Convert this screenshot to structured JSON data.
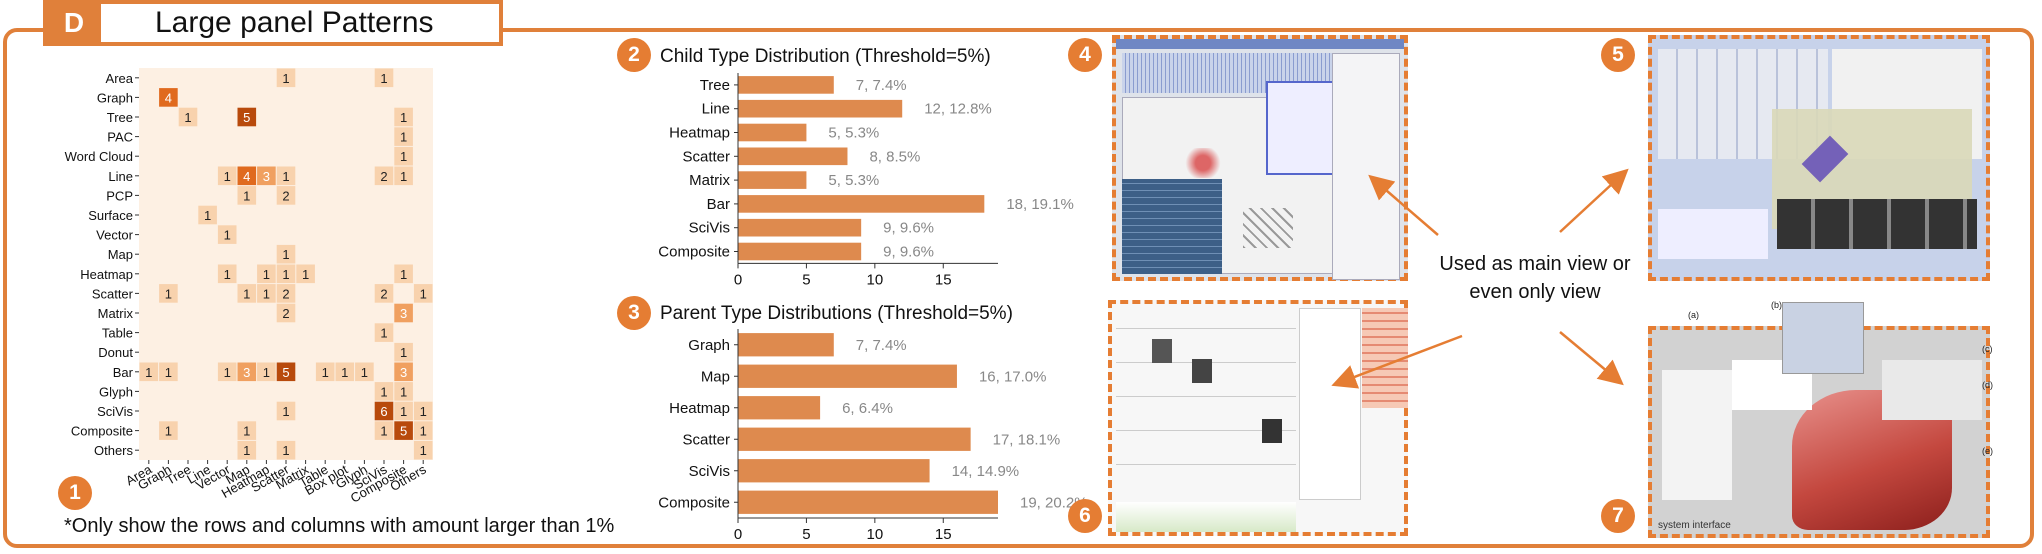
{
  "panel": {
    "letter": "D",
    "title": "Large panel Patterns"
  },
  "badges": [
    "1",
    "2",
    "3",
    "4",
    "5",
    "6",
    "7"
  ],
  "footnote": "*Only show the rows and columns with amount larger than 1%",
  "main_view_text": [
    "Used as main view or",
    "even only view"
  ],
  "screenshot_caption": "system interface",
  "screenshot_labels": [
    "(a)",
    "(b)",
    "(c)",
    "(d)",
    "(e)"
  ],
  "chart_data": [
    {
      "type": "heatmap",
      "rows": [
        "Area",
        "Graph",
        "Tree",
        "PAC",
        "Word Cloud",
        "Line",
        "PCP",
        "Surface",
        "Vector",
        "Map",
        "Heatmap",
        "Scatter",
        "Matrix",
        "Table",
        "Donut",
        "Bar",
        "Glyph",
        "SciVis",
        "Composite",
        "Others"
      ],
      "columns": [
        "Area",
        "Graph",
        "Tree",
        "Line",
        "Vector",
        "Map",
        "Heatmap",
        "Scatter",
        "Matrix",
        "Table",
        "Box plot",
        "Glyph",
        "SciVis",
        "Composite",
        "Others"
      ],
      "cells": [
        [
          "Area",
          "Scatter",
          1
        ],
        [
          "Area",
          "SciVis",
          1
        ],
        [
          "Graph",
          "Graph",
          4
        ],
        [
          "Tree",
          "Tree",
          1
        ],
        [
          "Tree",
          "Map",
          5
        ],
        [
          "Tree",
          "Composite",
          1
        ],
        [
          "PAC",
          "Composite",
          1
        ],
        [
          "Word Cloud",
          "Composite",
          1
        ],
        [
          "Line",
          "Vector",
          1
        ],
        [
          "Line",
          "Map",
          4
        ],
        [
          "Line",
          "Heatmap",
          3
        ],
        [
          "Line",
          "Scatter",
          1
        ],
        [
          "Line",
          "SciVis",
          2
        ],
        [
          "Line",
          "Composite",
          1
        ],
        [
          "PCP",
          "Map",
          1
        ],
        [
          "PCP",
          "Scatter",
          2
        ],
        [
          "Surface",
          "Line",
          1
        ],
        [
          "Vector",
          "Vector",
          1
        ],
        [
          "Map",
          "Scatter",
          1
        ],
        [
          "Heatmap",
          "Vector",
          1
        ],
        [
          "Heatmap",
          "Heatmap",
          1
        ],
        [
          "Heatmap",
          "Scatter",
          1
        ],
        [
          "Heatmap",
          "Matrix",
          1
        ],
        [
          "Heatmap",
          "Composite",
          1
        ],
        [
          "Scatter",
          "Graph",
          1
        ],
        [
          "Scatter",
          "Map",
          1
        ],
        [
          "Scatter",
          "Heatmap",
          1
        ],
        [
          "Scatter",
          "Scatter",
          2
        ],
        [
          "Scatter",
          "SciVis",
          2
        ],
        [
          "Scatter",
          "Others",
          1
        ],
        [
          "Matrix",
          "Scatter",
          2
        ],
        [
          "Matrix",
          "Composite",
          3
        ],
        [
          "Table",
          "SciVis",
          1
        ],
        [
          "Donut",
          "Composite",
          1
        ],
        [
          "Bar",
          "Area",
          1
        ],
        [
          "Bar",
          "Graph",
          1
        ],
        [
          "Bar",
          "Vector",
          1
        ],
        [
          "Bar",
          "Map",
          3
        ],
        [
          "Bar",
          "Heatmap",
          1
        ],
        [
          "Bar",
          "Scatter",
          5
        ],
        [
          "Bar",
          "Table",
          1
        ],
        [
          "Bar",
          "Box plot",
          1
        ],
        [
          "Bar",
          "Glyph",
          1
        ],
        [
          "Bar",
          "Composite",
          3
        ],
        [
          "Glyph",
          "SciVis",
          1
        ],
        [
          "Glyph",
          "Composite",
          1
        ],
        [
          "SciVis",
          "Scatter",
          1
        ],
        [
          "SciVis",
          "SciVis",
          6
        ],
        [
          "SciVis",
          "Composite",
          1
        ],
        [
          "SciVis",
          "Others",
          1
        ],
        [
          "Composite",
          "Graph",
          1
        ],
        [
          "Composite",
          "Map",
          1
        ],
        [
          "Composite",
          "SciVis",
          1
        ],
        [
          "Composite",
          "Composite",
          5
        ],
        [
          "Composite",
          "Others",
          1
        ],
        [
          "Others",
          "Map",
          1
        ],
        [
          "Others",
          "Scatter",
          1
        ],
        [
          "Others",
          "Others",
          1
        ]
      ],
      "colors": {
        "background": "#fdf0e3",
        "low": "#f8d2ad",
        "mid": "#f0a060",
        "high": "#e06a1e",
        "max": "#b84a0c"
      }
    },
    {
      "type": "bar",
      "title": "Child Type Distribution (Threshold=5%)",
      "categories": [
        "Tree",
        "Line",
        "Heatmap",
        "Scatter",
        "Matrix",
        "Bar",
        "SciVis",
        "Composite"
      ],
      "values": [
        7,
        12,
        5,
        8,
        5,
        18,
        9,
        9
      ],
      "labels": [
        "7, 7.4%",
        "12, 12.8%",
        "5, 5.3%",
        "8, 8.5%",
        "5, 5.3%",
        "18, 19.1%",
        "9, 9.6%",
        "9, 9.6%"
      ],
      "xticks": [
        0,
        5,
        10,
        15
      ],
      "xlim": [
        0,
        19
      ],
      "color": "#de8a4e"
    },
    {
      "type": "bar",
      "title": "Parent Type Distributions (Threshold=5%)",
      "categories": [
        "Graph",
        "Map",
        "Heatmap",
        "Scatter",
        "SciVis",
        "Composite"
      ],
      "values": [
        7,
        16,
        6,
        17,
        14,
        19
      ],
      "labels": [
        "7, 7.4%",
        "16, 17.0%",
        "6, 6.4%",
        "17, 18.1%",
        "14, 14.9%",
        "19, 20.2%"
      ],
      "xticks": [
        0,
        5,
        10,
        15
      ],
      "xlim": [
        0,
        19
      ],
      "color": "#de8a4e"
    }
  ]
}
